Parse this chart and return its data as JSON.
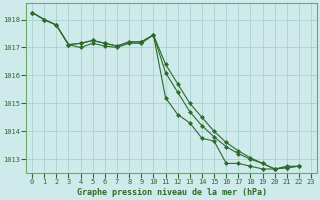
{
  "title": "Graphe pression niveau de la mer (hPa)",
  "background_color": "#ceeaea",
  "grid_color": "#a8d0d0",
  "line_color": "#2d6b2d",
  "xlim": [
    -0.5,
    23.5
  ],
  "ylim": [
    1012.5,
    1018.6
  ],
  "yticks": [
    1013,
    1014,
    1015,
    1016,
    1017,
    1018
  ],
  "xtick_labels": [
    "0",
    "1",
    "2",
    "3",
    "4",
    "5",
    "6",
    "7",
    "8",
    "9",
    "10",
    "11",
    "12",
    "13",
    "14",
    "15",
    "16",
    "17",
    "18",
    "19",
    "20",
    "21",
    "22",
    "23"
  ],
  "series": [
    [
      1018.25,
      1018.0,
      1017.8,
      1017.1,
      1017.0,
      1017.15,
      1017.05,
      1017.0,
      1017.15,
      1017.15,
      1017.45,
      1015.2,
      1014.6,
      1014.3,
      1013.75,
      1013.65,
      1012.85,
      1012.85,
      1012.75,
      1012.65,
      1012.65,
      1012.75,
      1012.75
    ],
    [
      1018.25,
      1018.0,
      1017.8,
      1017.1,
      1017.15,
      1017.25,
      1017.15,
      1017.05,
      1017.2,
      1017.2,
      1017.45,
      1016.4,
      1015.7,
      1015.0,
      1014.5,
      1014.0,
      1013.6,
      1013.3,
      1013.05,
      1012.85,
      1012.65,
      1012.7,
      1012.75
    ],
    [
      1018.25,
      1018.0,
      1017.8,
      1017.1,
      1017.15,
      1017.25,
      1017.15,
      1017.05,
      1017.2,
      1017.2,
      1017.45,
      1016.1,
      1015.4,
      1014.7,
      1014.2,
      1013.8,
      1013.45,
      1013.2,
      1013.0,
      1012.85,
      1012.65,
      1012.7,
      1012.75
    ]
  ],
  "marker": "D",
  "marker_size": 2.0,
  "line_width": 0.8,
  "ylabel_fontsize": 5,
  "xlabel_fontsize": 6,
  "tick_fontsize": 5,
  "spine_color": "#6aaa6a"
}
